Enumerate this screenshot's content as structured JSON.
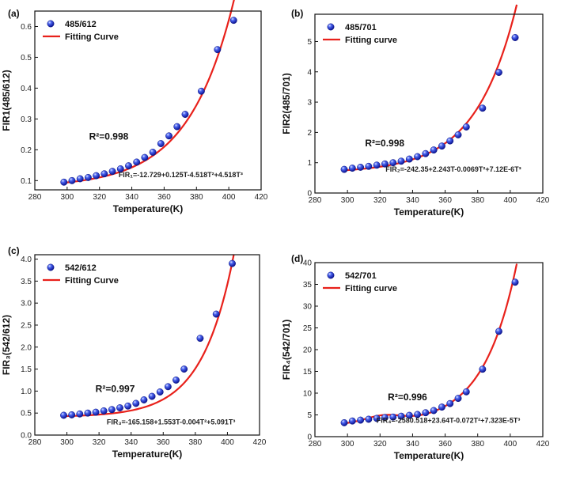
{
  "colors": {
    "marker_fill": "#2a3fd6",
    "marker_edge": "#0d1680",
    "fit_line": "#e8211b",
    "axis": "#111111"
  },
  "chart_data": [
    {
      "id": "a",
      "type": "scatter",
      "panel_label": "(a)",
      "xlabel": "Temperature(K)",
      "ylabel": "FIR1(485/612)",
      "xlim": [
        280,
        420
      ],
      "ylim": [
        0.07,
        0.65
      ],
      "xticks": [
        280,
        300,
        320,
        340,
        360,
        380,
        400,
        420
      ],
      "yticks": [
        0.1,
        0.2,
        0.3,
        0.4,
        0.5,
        0.6
      ],
      "legend": {
        "position": "top-left",
        "marker_label": "485/612",
        "line_label": "Fitting Curve"
      },
      "r2": "R²=0.998",
      "equation": "FIR₁=-12.729+0.125T-4.518T²+4.518T³",
      "series_points": {
        "x": [
          298,
          303,
          308,
          313,
          318,
          323,
          328,
          333,
          338,
          343,
          348,
          353,
          358,
          363,
          368,
          373,
          383,
          393,
          403
        ],
        "y": [
          0.095,
          0.1,
          0.106,
          0.11,
          0.116,
          0.122,
          0.13,
          0.138,
          0.148,
          0.16,
          0.175,
          0.192,
          0.22,
          0.245,
          0.275,
          0.315,
          0.39,
          0.525,
          0.62
        ]
      },
      "fit": {
        "x0": 298,
        "y0": 0.093,
        "A": 0.0145,
        "k": 0.0355
      }
    },
    {
      "id": "b",
      "type": "scatter",
      "panel_label": "(b)",
      "xlabel": "Temperature(K)",
      "ylabel": "FIR2(485/701)",
      "xlim": [
        280,
        420
      ],
      "ylim": [
        0.0,
        5.9
      ],
      "xticks": [
        280,
        300,
        320,
        340,
        360,
        380,
        400,
        420
      ],
      "yticks": [
        0,
        1,
        2,
        3,
        4,
        5
      ],
      "legend": {
        "position": "top-left",
        "marker_label": "485/701",
        "line_label": "Fitting curve"
      },
      "r2": "R²=0.998",
      "equation": "FIR₂=-242.35+2.243T-0.0069T²+7.12E-6T³",
      "series_points": {
        "x": [
          298,
          303,
          308,
          313,
          318,
          323,
          328,
          333,
          338,
          343,
          348,
          353,
          358,
          363,
          368,
          373,
          383,
          393,
          403
        ],
        "y": [
          0.78,
          0.82,
          0.85,
          0.88,
          0.92,
          0.96,
          1.0,
          1.05,
          1.12,
          1.2,
          1.3,
          1.42,
          1.55,
          1.72,
          1.92,
          2.18,
          2.8,
          3.98,
          5.13
        ]
      },
      "fit": {
        "x0": 298,
        "y0": 0.75,
        "A": 0.0843,
        "k": 0.0395
      }
    },
    {
      "id": "c",
      "type": "scatter",
      "panel_label": "(c)",
      "xlabel": "Temperature(K)",
      "ylabel": "FIR₃(542/612)",
      "xlim": [
        280,
        420
      ],
      "ylim": [
        0.0,
        4.1
      ],
      "xticks": [
        280,
        300,
        320,
        340,
        360,
        380,
        400,
        420
      ],
      "yticks": [
        0.0,
        0.5,
        1.0,
        1.5,
        2.0,
        2.5,
        3.0,
        3.5,
        4.0
      ],
      "legend": {
        "position": "top-left",
        "marker_label": "542/612",
        "line_label": "Fitting Curve"
      },
      "r2": "R²=0.997",
      "equation": "FIR₃=-165.158+1.553T-0.004T²+5.091T³",
      "series_points": {
        "x": [
          298,
          303,
          308,
          313,
          318,
          323,
          328,
          333,
          338,
          343,
          348,
          353,
          358,
          363,
          368,
          373,
          383,
          393,
          403
        ],
        "y": [
          0.45,
          0.46,
          0.48,
          0.5,
          0.52,
          0.55,
          0.58,
          0.62,
          0.66,
          0.72,
          0.8,
          0.88,
          0.98,
          1.1,
          1.25,
          1.5,
          2.2,
          2.75,
          3.9
        ]
      },
      "fit": {
        "x0": 298,
        "y0": 0.43,
        "A": 0.0175,
        "k": 0.0505
      }
    },
    {
      "id": "d",
      "type": "scatter",
      "panel_label": "(d)",
      "xlabel": "Temperature(K)",
      "ylabel": "FIR₄(542/701)",
      "xlim": [
        280,
        420
      ],
      "ylim": [
        0,
        40
      ],
      "xticks": [
        280,
        300,
        320,
        340,
        360,
        380,
        400,
        420
      ],
      "yticks": [
        0,
        5,
        10,
        15,
        20,
        25,
        30,
        35,
        40
      ],
      "legend": {
        "position": "top-left",
        "marker_label": "542/701",
        "line_label": "Fitting curve"
      },
      "r2": "R²=0.996",
      "equation": "FIR₄=-2580.518+23.64T-0.072T²+7.323E-5T³",
      "series_points": {
        "x": [
          298,
          303,
          308,
          313,
          318,
          323,
          328,
          333,
          338,
          343,
          348,
          353,
          358,
          363,
          368,
          373,
          383,
          393,
          403
        ],
        "y": [
          3.2,
          3.6,
          3.8,
          4.0,
          4.2,
          4.4,
          4.5,
          4.7,
          4.9,
          5.1,
          5.5,
          6.0,
          6.8,
          7.6,
          8.8,
          10.3,
          15.5,
          24.2,
          35.5
        ]
      },
      "fit": {
        "x0": 298,
        "y0": 2.9,
        "A": 0.21,
        "k": 0.0488,
        "bumpA": 1.6,
        "bumpC": 322,
        "bumpW": 16
      }
    }
  ]
}
